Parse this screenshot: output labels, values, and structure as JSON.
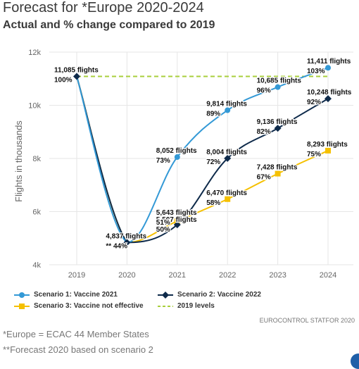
{
  "title": "Forecast for *Europe 2020-2024",
  "subtitle": "Actual and % change compared to 2019",
  "source": "EUROCONTROL STATFOR 2020",
  "footnotes": [
    "*Europe = ECAC 44 Member States",
    "**Forecast 2020 based on scenario 2"
  ],
  "colors": {
    "scenario1": "#3399d6",
    "scenario2": "#0e2a4a",
    "scenario3": "#f5c000",
    "levels2019": "#a8cf3c",
    "grid": "#e6e6e6",
    "axis_text": "#666666"
  },
  "chart_data": {
    "type": "line",
    "title": "Forecast for *Europe 2020-2024",
    "subtitle": "Actual and % change compared to 2019",
    "xlabel": "",
    "ylabel": "Flights in thousands",
    "x": [
      "2019",
      "2020",
      "2021",
      "2022",
      "2023",
      "2024"
    ],
    "ylim": [
      4000,
      12000
    ],
    "yticks": [
      4000,
      6000,
      8000,
      10000,
      12000
    ],
    "ytick_labels": [
      "4k",
      "6k",
      "8k",
      "10k",
      "12k"
    ],
    "grid": true,
    "legend_position": "bottom",
    "series": [
      {
        "key": "s1",
        "name": "Scenario 1: Vaccine 2021",
        "marker": "circle",
        "color": "#3399d6",
        "values": [
          11085,
          4837,
          8052,
          9814,
          10685,
          11411
        ],
        "labels": [
          null,
          null,
          "8,052 flights",
          "9,814 flights",
          "10,685 flights",
          "11,411 flights"
        ],
        "pct": [
          null,
          null,
          "73%",
          "89%",
          "96%",
          "103%"
        ]
      },
      {
        "key": "s2",
        "name": "Scenario 2: Vaccine 2022",
        "marker": "diamond",
        "color": "#0e2a4a",
        "values": [
          11085,
          4837,
          5507,
          8004,
          9136,
          10248
        ],
        "labels": [
          "11,085 flights",
          "4,837 flights",
          "5,507 flights",
          "8,004 flights",
          "9,136 flights",
          "10,248 flights"
        ],
        "pct": [
          "100%",
          "** 44%",
          "50%",
          "72%",
          "82%",
          "92%"
        ]
      },
      {
        "key": "s3",
        "name": "Scenario 3: Vaccine not effective",
        "marker": "square",
        "color": "#f5c000",
        "values": [
          11085,
          4837,
          5643,
          6470,
          7428,
          8293
        ],
        "labels": [
          null,
          null,
          "5,643 flights",
          "6,470 flights",
          "7,428 flights",
          "8,293 flights"
        ],
        "pct": [
          null,
          null,
          "51%",
          "58%",
          "67%",
          "75%"
        ]
      },
      {
        "key": "lv",
        "name": "2019 levels",
        "style": "dashed",
        "color": "#a8cf3c",
        "values": [
          11085,
          11085,
          11085,
          11085,
          11085,
          11085
        ]
      }
    ]
  }
}
